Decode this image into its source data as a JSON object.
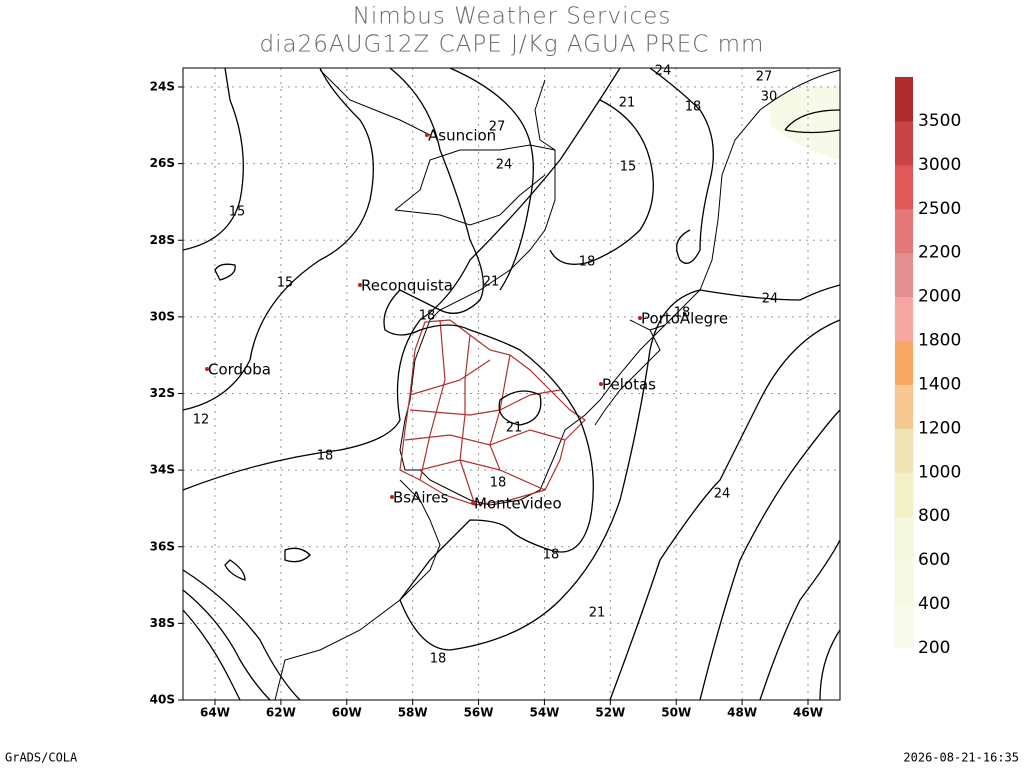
{
  "header": {
    "title": "Nimbus Weather Services",
    "subtitle": "dia26AUG12Z CAPE J/Kg AGUA PREC mm"
  },
  "map": {
    "lat_labels": [
      "24S",
      "26S",
      "28S",
      "30S",
      "32S",
      "34S",
      "36S",
      "38S",
      "40S"
    ],
    "lon_labels": [
      "64W",
      "62W",
      "60W",
      "58W",
      "56W",
      "54W",
      "52W",
      "50W",
      "48W",
      "46W"
    ],
    "cities": [
      "Asuncion",
      "Reconquista",
      "Cordoba",
      "PortoAlegre",
      "Pelotas",
      "BsAires",
      "Montevideo"
    ],
    "contour_labels": [
      24,
      27,
      30,
      21,
      18,
      27,
      24,
      15,
      15,
      18,
      15,
      21,
      24,
      18,
      18,
      12,
      21,
      18,
      18,
      24,
      18,
      21,
      18
    ]
  },
  "colorbar": {
    "labels": [
      200,
      400,
      600,
      800,
      1000,
      1200,
      1400,
      1800,
      2000,
      2200,
      2500,
      3000,
      3500
    ],
    "colors": [
      "#f8fbea",
      "#f6fae4",
      "#f4f8de",
      "#f1f1c8",
      "#f0e3b6",
      "#f4c890",
      "#f7a864",
      "#f6a7a2",
      "#e49090",
      "#e57878",
      "#e05858",
      "#c94444",
      "#ae2c2c"
    ]
  },
  "footer": {
    "left": "GrADS/COLA",
    "right": "2026-08-21-16:35"
  }
}
